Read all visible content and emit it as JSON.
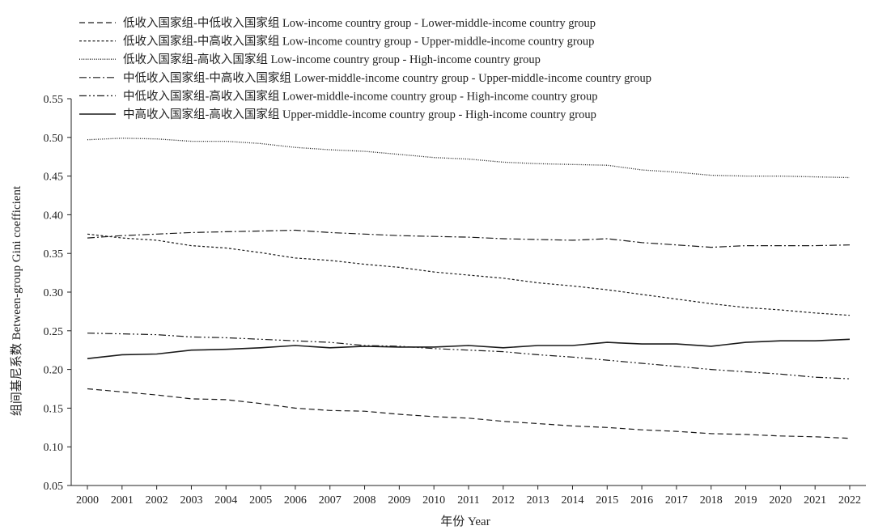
{
  "chart_data": {
    "type": "line",
    "title": "",
    "xlabel": "年份 Year",
    "ylabel": "组间基尼系数 Between-group Gini coefficient",
    "ylim": [
      0.05,
      0.55
    ],
    "yticks": [
      "0.05",
      "0.10",
      "0.15",
      "0.20",
      "0.25",
      "0.30",
      "0.35",
      "0.40",
      "0.45",
      "0.50",
      "0.55"
    ],
    "x": [
      "2000",
      "2001",
      "2002",
      "2003",
      "2004",
      "2005",
      "2006",
      "2007",
      "2008",
      "2009",
      "2010",
      "2011",
      "2012",
      "2013",
      "2014",
      "2015",
      "2016",
      "2017",
      "2018",
      "2019",
      "2020",
      "2021",
      "2022"
    ],
    "legend_position": "top-left",
    "series": [
      {
        "name": "低收入国家组-中低收入国家组 Low-income country group - Lower-middle-income country group",
        "style": "dashed",
        "color": "#1a1a1a",
        "values": [
          0.175,
          0.171,
          0.167,
          0.162,
          0.161,
          0.156,
          0.15,
          0.147,
          0.146,
          0.142,
          0.139,
          0.137,
          0.133,
          0.13,
          0.127,
          0.125,
          0.122,
          0.12,
          0.117,
          0.116,
          0.114,
          0.113,
          0.111
        ]
      },
      {
        "name": "低收入国家组-中高收入国家组 Low-income country group - Upper-middle-income country group",
        "style": "short-dashed",
        "color": "#1a1a1a",
        "values": [
          0.375,
          0.37,
          0.367,
          0.36,
          0.357,
          0.351,
          0.344,
          0.341,
          0.336,
          0.332,
          0.326,
          0.322,
          0.318,
          0.312,
          0.308,
          0.303,
          0.297,
          0.291,
          0.285,
          0.28,
          0.277,
          0.273,
          0.27
        ]
      },
      {
        "name": "低收入国家组-高收入国家组 Low-income country group - High-income country group",
        "style": "dotted",
        "color": "#1a1a1a",
        "values": [
          0.497,
          0.499,
          0.498,
          0.495,
          0.495,
          0.492,
          0.487,
          0.484,
          0.482,
          0.478,
          0.474,
          0.472,
          0.468,
          0.466,
          0.465,
          0.464,
          0.458,
          0.455,
          0.451,
          0.45,
          0.45,
          0.449,
          0.448
        ]
      },
      {
        "name": "中低收入国家组-中高收入国家组 Lower-middle-income country group - Upper-middle-income country group",
        "style": "dash-dot",
        "color": "#1a1a1a",
        "values": [
          0.37,
          0.373,
          0.375,
          0.377,
          0.378,
          0.379,
          0.38,
          0.377,
          0.375,
          0.373,
          0.372,
          0.371,
          0.369,
          0.368,
          0.367,
          0.369,
          0.364,
          0.361,
          0.358,
          0.36,
          0.36,
          0.36,
          0.361
        ]
      },
      {
        "name": "中低收入国家组-高收入国家组 Lower-middle-income country group - High-income country group",
        "style": "dash-dot-dot",
        "color": "#1a1a1a",
        "values": [
          0.247,
          0.246,
          0.245,
          0.242,
          0.241,
          0.239,
          0.237,
          0.235,
          0.231,
          0.23,
          0.227,
          0.225,
          0.223,
          0.219,
          0.216,
          0.212,
          0.208,
          0.204,
          0.2,
          0.197,
          0.194,
          0.19,
          0.188
        ]
      },
      {
        "name": "中高收入国家组-高收入国家组 Upper-middle-income country group - High-income country group",
        "style": "solid",
        "color": "#1a1a1a",
        "values": [
          0.214,
          0.219,
          0.22,
          0.225,
          0.226,
          0.228,
          0.231,
          0.228,
          0.23,
          0.229,
          0.229,
          0.231,
          0.228,
          0.231,
          0.231,
          0.235,
          0.233,
          0.233,
          0.23,
          0.235,
          0.237,
          0.237,
          0.239
        ]
      }
    ]
  }
}
